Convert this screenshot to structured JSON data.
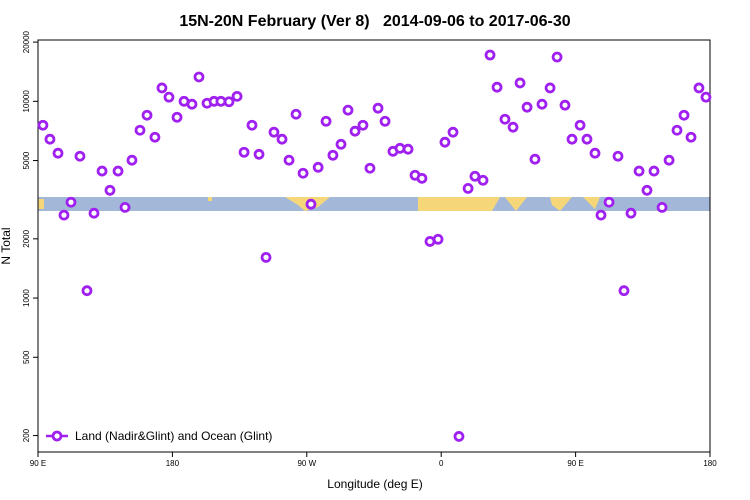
{
  "chart_data": {
    "type": "scatter",
    "title": "15N-20N February (Ver 8)   2014-09-06 to 2017-06-30",
    "xlabel": "Longitude (deg E)",
    "ylabel": "N Total",
    "xlim": [
      90,
      540
    ],
    "xticks": [
      {
        "value": 90,
        "label": "90 E"
      },
      {
        "value": 180,
        "label": "180"
      },
      {
        "value": 270,
        "label": "90 W"
      },
      {
        "value": 360,
        "label": "0"
      },
      {
        "value": 450,
        "label": "90 E"
      },
      {
        "value": 540,
        "label": "180"
      }
    ],
    "ylim": [
      165,
      20500
    ],
    "yticks": [
      200,
      500,
      1000,
      2000,
      5000,
      10000,
      20000
    ],
    "log_y": true,
    "legend": "lower left",
    "series": [
      {
        "name": "Land (Nadir&Glint) and Ocean (Glint)",
        "color": "#a020f0",
        "x": [
          93.3,
          98,
          103.4,
          107.4,
          112.1,
          118.1,
          122.8,
          127.5,
          132.9,
          138.2,
          143.6,
          148.3,
          152.9,
          158.3,
          163,
          168.3,
          173,
          177.7,
          183.1,
          187.8,
          193.1,
          197.8,
          203.2,
          207.9,
          212.5,
          217.9,
          223.3,
          228,
          233.3,
          238,
          242.7,
          248,
          253.4,
          258.1,
          262.8,
          267.5,
          272.8,
          277.6,
          282.9,
          287.5,
          292.9,
          297.6,
          302.3,
          307.6,
          312.3,
          317.7,
          322.4,
          327.7,
          332.4,
          337.8,
          342.5,
          347.1,
          352.5,
          357.9,
          362.5,
          367.9,
          371.9,
          378,
          382.6,
          388,
          392.7,
          397.4,
          402.7,
          408.1,
          412.8,
          417.5,
          422.8,
          427.5,
          432.9,
          437.6,
          442.9,
          447.6,
          453,
          457.6,
          463,
          467,
          472.4,
          478.4,
          482.4,
          487.1,
          492.5,
          497.8,
          502.5,
          507.9,
          512.6,
          517.9,
          522.6,
          527.3,
          532.6,
          537.3
        ],
        "values": [
          7560,
          6420,
          5450,
          2640,
          3070,
          5260,
          1090,
          2700,
          4420,
          3530,
          4420,
          2890,
          5020,
          7130,
          8500,
          6570,
          11700,
          10500,
          8300,
          10000,
          9670,
          13300,
          9780,
          10000,
          10000,
          9950,
          10600,
          5510,
          7560,
          5380,
          1610,
          6970,
          6420,
          5020,
          8600,
          4310,
          3000,
          4620,
          7920,
          5320,
          6050,
          9020,
          7050,
          7560,
          4570,
          9230,
          7920,
          5570,
          5770,
          5710,
          4210,
          4060,
          1940,
          1990,
          6200,
          6970,
          198,
          3610,
          4160,
          3970,
          17200,
          11800,
          8110,
          7390,
          12400,
          9340,
          5080,
          9670,
          11700,
          16800,
          9560,
          6420,
          7560,
          6420,
          5450,
          2640,
          3070,
          5260,
          1090,
          2700,
          4420,
          3530,
          4420,
          2890,
          5020,
          7130,
          8500,
          6570,
          11700,
          10500
        ]
      }
    ]
  }
}
